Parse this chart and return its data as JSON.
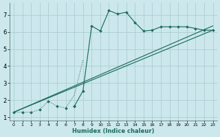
{
  "xlabel": "Humidex (Indice chaleur)",
  "bg_color": "#cce8ec",
  "grid_color": "#aacdd4",
  "line_color": "#1a6b5a",
  "xlim": [
    -0.5,
    23.5
  ],
  "ylim": [
    0.8,
    7.7
  ],
  "yticks": [
    1,
    2,
    3,
    4,
    5,
    6,
    7
  ],
  "xticks": [
    0,
    1,
    2,
    3,
    4,
    5,
    6,
    7,
    8,
    9,
    10,
    11,
    12,
    13,
    14,
    15,
    16,
    17,
    18,
    19,
    20,
    21,
    22,
    23
  ],
  "curve_x": [
    0,
    1,
    2,
    3,
    4,
    5,
    6,
    7,
    8,
    9,
    10,
    11,
    12,
    13,
    14,
    15,
    16,
    17,
    18,
    19,
    20,
    21,
    22,
    23
  ],
  "curve_y": [
    1.3,
    1.3,
    1.3,
    1.45,
    1.95,
    1.65,
    1.55,
    1.65,
    2.55,
    6.35,
    6.05,
    7.25,
    7.05,
    7.15,
    6.55,
    6.05,
    6.1,
    6.3,
    6.3,
    6.3,
    6.3,
    6.2,
    6.1,
    6.1
  ],
  "line1_x": [
    0,
    23
  ],
  "line1_y": [
    1.3,
    6.1
  ],
  "line2_x": [
    0,
    23
  ],
  "line2_y": [
    1.3,
    6.35
  ],
  "dot_line_x": [
    0,
    1,
    2,
    3,
    4,
    5,
    6,
    7,
    8,
    9,
    10,
    11,
    12,
    13,
    14,
    15,
    16,
    17,
    18,
    19,
    20,
    21,
    22,
    23
  ],
  "dot_line_y": [
    1.3,
    1.3,
    1.3,
    1.45,
    1.95,
    1.65,
    1.55,
    2.3,
    4.35,
    6.35,
    6.05,
    7.25,
    7.05,
    7.15,
    6.55,
    6.05,
    6.1,
    6.3,
    6.3,
    6.3,
    6.3,
    6.2,
    6.1,
    6.1
  ]
}
